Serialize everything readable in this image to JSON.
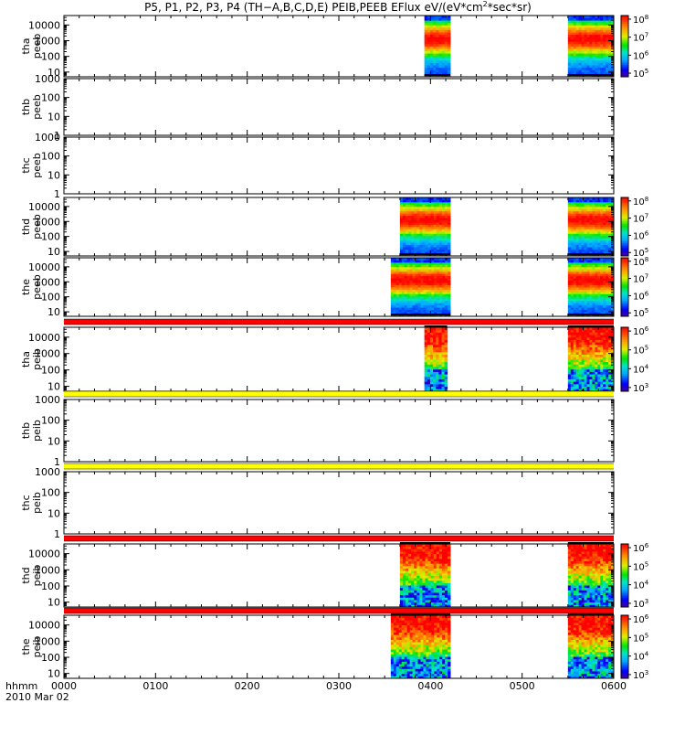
{
  "chart_data": {
    "type": "heatmap",
    "title": "P5, P1, P2, P3, P4 (TH−A,B,C,D,E) PEIB,PEEB EFlux eV/(eV*cm²*sec*sr)",
    "time_axis": {
      "start_label": "hhmm",
      "date_label": "2010 Mar 02",
      "ticks": [
        "0000",
        "0100",
        "0200",
        "0300",
        "0400",
        "0500",
        "0600"
      ],
      "range_minutes": [
        0,
        360
      ]
    },
    "panels": [
      {
        "id": "tha-peeb",
        "label1": "tha",
        "label2": "peeb",
        "yscale": "log",
        "ylim": [
          5,
          40000
        ],
        "yticks": [
          "10",
          "100",
          "1000",
          "10000"
        ],
        "colorbar": {
          "range_log10": [
            4.8,
            8.2
          ],
          "ticks": [
            {
              "t": "10",
              "s": "5"
            },
            {
              "t": "10",
              "s": "6"
            },
            {
              "t": "10",
              "s": "7"
            },
            {
              "t": "10",
              "s": "8"
            }
          ]
        },
        "intervals": [
          [
            236,
            253
          ],
          [
            330,
            360
          ]
        ],
        "bar": null,
        "style": "electron"
      },
      {
        "id": "thb-peeb",
        "label1": "thb",
        "label2": "peeb",
        "yscale": "log",
        "ylim": [
          1,
          1000
        ],
        "yticks": [
          "1",
          "10",
          "100",
          "1000"
        ],
        "colorbar": null,
        "intervals": [],
        "bar": null,
        "style": "none"
      },
      {
        "id": "thc-peeb",
        "label1": "thc",
        "label2": "peeb",
        "yscale": "log",
        "ylim": [
          1,
          1000
        ],
        "yticks": [
          "1",
          "10",
          "100",
          "1000"
        ],
        "colorbar": null,
        "intervals": [],
        "bar": null,
        "style": "none"
      },
      {
        "id": "thd-peeb",
        "label1": "thd",
        "label2": "peeb",
        "yscale": "log",
        "ylim": [
          5,
          40000
        ],
        "yticks": [
          "10",
          "100",
          "1000",
          "10000"
        ],
        "colorbar": {
          "range_log10": [
            4.8,
            8.2
          ],
          "ticks": [
            {
              "t": "10",
              "s": "5"
            },
            {
              "t": "10",
              "s": "6"
            },
            {
              "t": "10",
              "s": "7"
            },
            {
              "t": "10",
              "s": "8"
            }
          ]
        },
        "intervals": [
          [
            220,
            253
          ],
          [
            330,
            360
          ]
        ],
        "bar": null,
        "style": "electron"
      },
      {
        "id": "the-peeb",
        "label1": "the",
        "label2": "peeb",
        "yscale": "log",
        "ylim": [
          5,
          40000
        ],
        "yticks": [
          "10",
          "100",
          "1000",
          "10000"
        ],
        "colorbar": {
          "range_log10": [
            4.8,
            8.2
          ],
          "ticks": [
            {
              "t": "10",
              "s": "5"
            },
            {
              "t": "10",
              "s": "6"
            },
            {
              "t": "10",
              "s": "7"
            },
            {
              "t": "10",
              "s": "8"
            }
          ]
        },
        "intervals": [
          [
            214,
            253
          ],
          [
            330,
            360
          ]
        ],
        "bar": null,
        "style": "electron"
      },
      {
        "id": "tha-peib",
        "label1": "tha",
        "label2": "peib",
        "yscale": "log",
        "ylim": [
          5,
          40000
        ],
        "yticks": [
          "10",
          "100",
          "1000",
          "10000"
        ],
        "colorbar": {
          "range_log10": [
            2.8,
            6.2
          ],
          "ticks": [
            {
              "t": "10",
              "s": "3"
            },
            {
              "t": "10",
              "s": "4"
            },
            {
              "t": "10",
              "s": "5"
            },
            {
              "t": "10",
              "s": "6"
            }
          ]
        },
        "intervals": [
          [
            236,
            251
          ],
          [
            330,
            360
          ]
        ],
        "bar": "#ff0000",
        "style": "ion"
      },
      {
        "id": "thb-peib",
        "label1": "thb",
        "label2": "peib",
        "yscale": "log",
        "ylim": [
          1,
          1000
        ],
        "yticks": [
          "1",
          "10",
          "100",
          "1000"
        ],
        "colorbar": null,
        "intervals": [],
        "bar": "#ffff00",
        "style": "none"
      },
      {
        "id": "thc-peib",
        "label1": "thc",
        "label2": "peib",
        "yscale": "log",
        "ylim": [
          1,
          1000
        ],
        "yticks": [
          "1",
          "10",
          "100",
          "1000"
        ],
        "colorbar": null,
        "intervals": [],
        "bar": "#ffff00",
        "style": "none"
      },
      {
        "id": "thd-peib",
        "label1": "thd",
        "label2": "peib",
        "yscale": "log",
        "ylim": [
          5,
          40000
        ],
        "yticks": [
          "10",
          "100",
          "1000",
          "10000"
        ],
        "colorbar": {
          "range_log10": [
            2.8,
            6.2
          ],
          "ticks": [
            {
              "t": "10",
              "s": "3"
            },
            {
              "t": "10",
              "s": "4"
            },
            {
              "t": "10",
              "s": "5"
            },
            {
              "t": "10",
              "s": "6"
            }
          ]
        },
        "intervals": [
          [
            220,
            253
          ],
          [
            330,
            360
          ]
        ],
        "bar": "#ff0000",
        "style": "ion"
      },
      {
        "id": "the-peib",
        "label1": "the",
        "label2": "peib",
        "yscale": "log",
        "ylim": [
          5,
          40000
        ],
        "yticks": [
          "10",
          "100",
          "1000",
          "10000"
        ],
        "colorbar": {
          "range_log10": [
            2.8,
            6.2
          ],
          "ticks": [
            {
              "t": "10",
              "s": "3"
            },
            {
              "t": "10",
              "s": "4"
            },
            {
              "t": "10",
              "s": "5"
            },
            {
              "t": "10",
              "s": "6"
            }
          ]
        },
        "intervals": [
          [
            214,
            253
          ],
          [
            330,
            360
          ]
        ],
        "bar": "#ff0000",
        "style": "ion"
      }
    ]
  }
}
